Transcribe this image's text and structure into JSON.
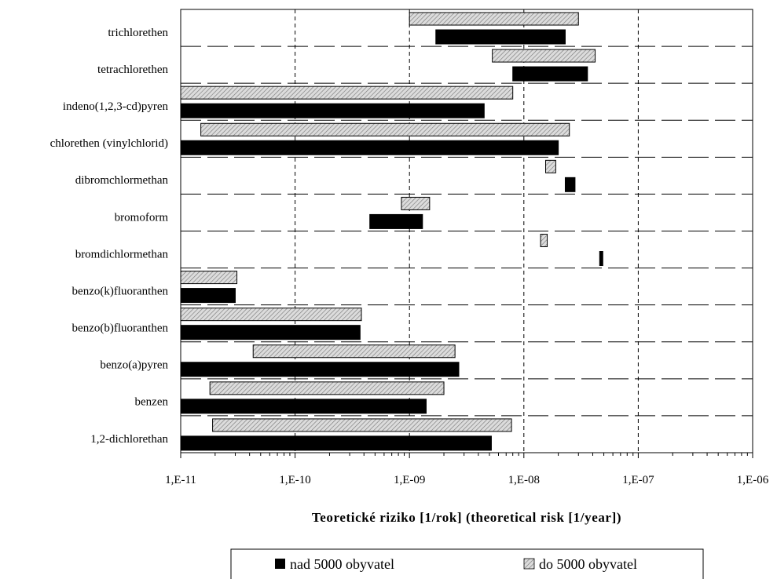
{
  "chart_data": {
    "type": "bar",
    "orientation": "horizontal",
    "range_bars": true,
    "scale": "log",
    "xlabel": "Teoretické riziko [1/rok] (theoretical risk [1/year])",
    "xlim": [
      1e-11,
      1e-06
    ],
    "x_ticks": [
      1e-11,
      1e-10,
      1e-09,
      1e-08,
      1e-07,
      1e-06
    ],
    "x_tick_labels": [
      "1,E-11",
      "1,E-10",
      "1,E-09",
      "1,E-08",
      "1,E-07",
      "1,E-06"
    ],
    "grid": {
      "vertical_major": true,
      "horizontal": true,
      "style": "dashed"
    },
    "legend": {
      "position": "bottom"
    },
    "categories": [
      "trichlorethen",
      "tetrachlorethen",
      "indeno(1,2,3-cd)pyren",
      "chlorethen (vinylchlorid)",
      "dibromchlormethan",
      "bromoform",
      "bromdichlormethan",
      "benzo(k)fluoranthen",
      "benzo(b)fluoranthen",
      "benzo(a)pyren",
      "benzen",
      "1,2-dichlorethan"
    ],
    "series": [
      {
        "name": "nad 5000 obyvatel",
        "color": "#000000",
        "pattern": "solid",
        "ranges": [
          [
            1.7e-09,
            2.3e-08
          ],
          [
            8e-09,
            3.6e-08
          ],
          [
            1e-11,
            4.5e-09
          ],
          [
            1e-11,
            2e-08
          ],
          [
            2.3e-08,
            2.8e-08
          ],
          [
            4.5e-10,
            1.3e-09
          ],
          [
            4.6e-08,
            4.9e-08
          ],
          [
            1e-11,
            3e-11
          ],
          [
            1e-11,
            3.7e-10
          ],
          [
            1e-11,
            2.7e-09
          ],
          [
            1e-11,
            1.4e-09
          ],
          [
            1e-11,
            5.2e-09
          ]
        ]
      },
      {
        "name": "do 5000 obyvatel",
        "color": "#c8c8c8",
        "pattern": "hatched",
        "ranges": [
          [
            1e-09,
            3e-08
          ],
          [
            5.3e-09,
            4.2e-08
          ],
          [
            1e-11,
            8e-09
          ],
          [
            1.5e-11,
            2.5e-08
          ],
          [
            1.55e-08,
            1.9e-08
          ],
          [
            8.5e-10,
            1.5e-09
          ],
          [
            1.4e-08,
            1.6e-08
          ],
          [
            1e-11,
            3.1e-11
          ],
          [
            1e-11,
            3.8e-10
          ],
          [
            4.3e-11,
            2.5e-09
          ],
          [
            1.8e-11,
            2e-09
          ],
          [
            1.9e-11,
            7.8e-09
          ]
        ]
      }
    ]
  }
}
